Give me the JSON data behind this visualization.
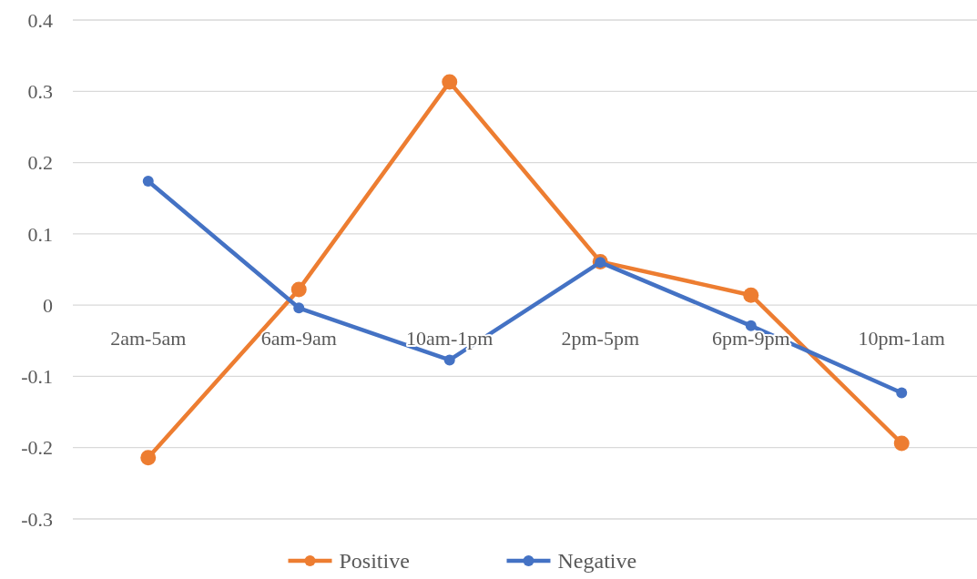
{
  "chart_data": {
    "type": "line",
    "categories": [
      "2am-5am",
      "6am-9am",
      "10am-1pm",
      "2pm-5pm",
      "6pm-9pm",
      "10pm-1am"
    ],
    "series": [
      {
        "name": "Positive",
        "color": "#ed7d31",
        "values": [
          -0.214,
          0.022,
          0.313,
          0.061,
          0.014,
          -0.194
        ]
      },
      {
        "name": "Negative",
        "color": "#4472c4",
        "values": [
          0.174,
          -0.004,
          -0.077,
          0.06,
          -0.029,
          -0.123
        ]
      }
    ],
    "ylim": [
      -0.3,
      0.4
    ],
    "yticks": [
      -0.3,
      -0.2,
      -0.1,
      0,
      0.1,
      0.2,
      0.3,
      0.4
    ],
    "grid": "y",
    "legend": "bottom",
    "marker": "circle",
    "line_style": "solid"
  }
}
